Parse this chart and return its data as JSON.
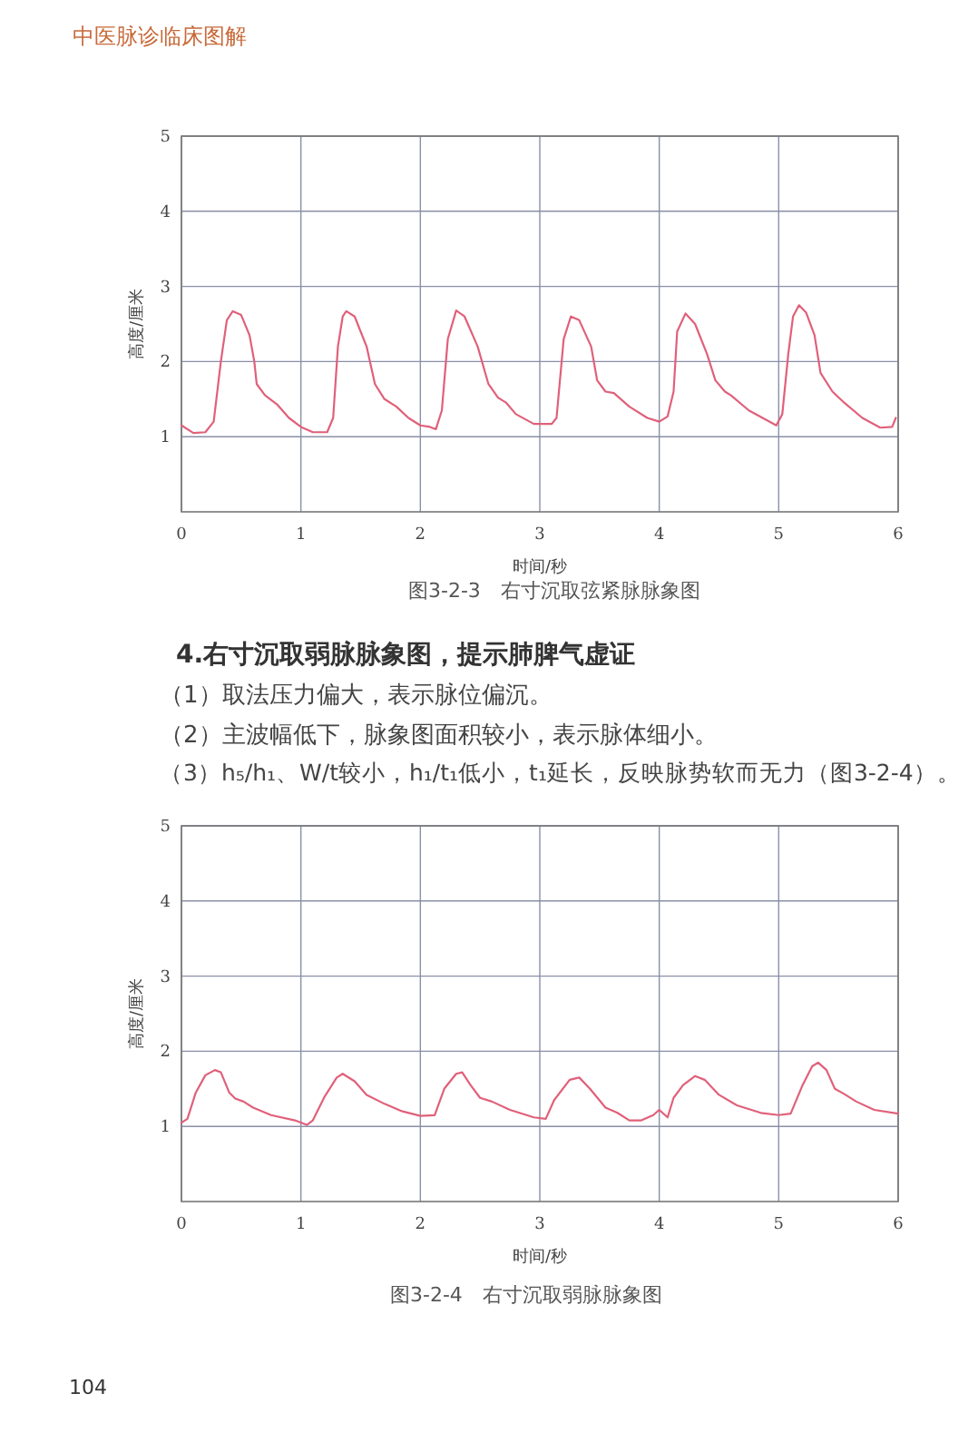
{
  "chart_data": [
    {
      "type": "line",
      "xlabel": "时间/秒",
      "ylabel": "高度/厘米",
      "xlim": [
        0,
        6
      ],
      "ylim": [
        0,
        5
      ],
      "xticks": [
        0,
        1,
        2,
        3,
        4,
        5,
        6
      ],
      "yticks": [
        1,
        2,
        3,
        4,
        5
      ],
      "grid": true,
      "annotations": [
        "中医脉诊临床图解",
        "图3-2-3　右寸沉取弦紧脉脉象图"
      ],
      "series": [
        {
          "color": "#e0607a",
          "x": [
            0,
            0.1,
            0.2,
            0.27,
            0.33,
            0.38,
            0.43,
            0.5,
            0.57,
            0.61,
            0.63,
            0.7,
            0.8,
            0.9,
            1.0,
            1.1,
            1.22,
            1.27,
            1.31,
            1.35,
            1.38,
            1.45,
            1.55,
            1.62,
            1.7,
            1.8,
            1.9,
            2.0,
            2.08,
            2.13,
            2.18,
            2.23,
            2.3,
            2.37,
            2.48,
            2.57,
            2.65,
            2.72,
            2.8,
            2.95,
            3.1,
            3.14,
            3.2,
            3.26,
            3.33,
            3.43,
            3.48,
            3.55,
            3.62,
            3.75,
            3.9,
            4.0,
            4.07,
            4.12,
            4.15,
            4.22,
            4.3,
            4.4,
            4.47,
            4.55,
            4.6,
            4.75,
            4.9,
            4.98,
            5.03,
            5.08,
            5.12,
            5.17,
            5.23,
            5.3,
            5.35,
            5.45,
            5.55,
            5.7,
            5.85,
            5.95,
            5.98
          ],
          "values": [
            1.15,
            1.05,
            1.06,
            1.2,
            2.0,
            2.55,
            2.67,
            2.62,
            2.35,
            2.0,
            1.7,
            1.55,
            1.43,
            1.25,
            1.13,
            1.06,
            1.06,
            1.25,
            2.2,
            2.6,
            2.67,
            2.6,
            2.2,
            1.7,
            1.5,
            1.4,
            1.25,
            1.15,
            1.13,
            1.1,
            1.35,
            2.3,
            2.68,
            2.6,
            2.2,
            1.7,
            1.52,
            1.45,
            1.3,
            1.17,
            1.17,
            1.25,
            2.3,
            2.6,
            2.55,
            2.2,
            1.75,
            1.6,
            1.58,
            1.4,
            1.25,
            1.2,
            1.27,
            1.6,
            2.4,
            2.64,
            2.5,
            2.1,
            1.75,
            1.6,
            1.55,
            1.35,
            1.22,
            1.15,
            1.3,
            2.1,
            2.6,
            2.75,
            2.65,
            2.35,
            1.85,
            1.6,
            1.45,
            1.25,
            1.12,
            1.13,
            1.25
          ]
        }
      ]
    },
    {
      "type": "line",
      "title": "4.右寸沉取弱脉脉象图，提示肺脾气虚证",
      "xlabel": "时间/秒",
      "ylabel": "高度/厘米",
      "xlim": [
        0,
        6
      ],
      "ylim": [
        0,
        5
      ],
      "xticks": [
        0,
        1,
        2,
        3,
        4,
        5,
        6
      ],
      "yticks": [
        1,
        2,
        3,
        4,
        5
      ],
      "grid": true,
      "annotations": [
        "（1）取法压力偏大，表示脉位偏沉。",
        "（2）主波幅低下，脉象图面积较小，表示脉体细小。",
        "（3）h₅/h₁、W/t较小，h₁/t₁低小，t₁延长，反映脉势软而无力（图3-2-4）。",
        "图3-2-4　右寸沉取弱脉脉象图",
        "104"
      ],
      "series": [
        {
          "color": "#e0607a",
          "x": [
            0,
            0.05,
            0.12,
            0.2,
            0.28,
            0.33,
            0.4,
            0.45,
            0.52,
            0.6,
            0.75,
            0.95,
            1.05,
            1.1,
            1.2,
            1.3,
            1.35,
            1.45,
            1.55,
            1.7,
            1.85,
            2.0,
            2.12,
            2.2,
            2.3,
            2.35,
            2.42,
            2.5,
            2.6,
            2.75,
            2.95,
            3.05,
            3.12,
            3.25,
            3.33,
            3.42,
            3.55,
            3.65,
            3.75,
            3.85,
            3.95,
            4.0,
            4.07,
            4.12,
            4.2,
            4.3,
            4.38,
            4.5,
            4.65,
            4.85,
            5.0,
            5.1,
            5.2,
            5.28,
            5.33,
            5.4,
            5.47,
            5.55,
            5.65,
            5.8,
            6.0
          ],
          "values": [
            1.05,
            1.1,
            1.45,
            1.68,
            1.75,
            1.72,
            1.45,
            1.37,
            1.33,
            1.25,
            1.15,
            1.08,
            1.02,
            1.08,
            1.4,
            1.65,
            1.7,
            1.6,
            1.42,
            1.3,
            1.2,
            1.14,
            1.15,
            1.5,
            1.7,
            1.72,
            1.55,
            1.38,
            1.33,
            1.22,
            1.12,
            1.1,
            1.35,
            1.62,
            1.65,
            1.5,
            1.25,
            1.18,
            1.08,
            1.08,
            1.15,
            1.22,
            1.12,
            1.38,
            1.55,
            1.67,
            1.62,
            1.42,
            1.28,
            1.18,
            1.15,
            1.17,
            1.55,
            1.8,
            1.85,
            1.75,
            1.5,
            1.43,
            1.33,
            1.22,
            1.17
          ]
        }
      ]
    }
  ]
}
